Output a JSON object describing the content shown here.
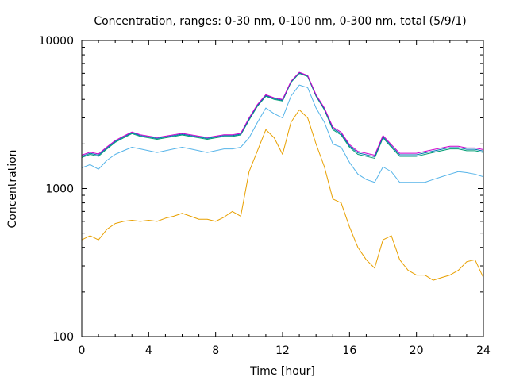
{
  "chart_data": {
    "type": "line",
    "title": "Concentration, ranges: 0-30 nm, 0-100 nm, 0-300 nm, total (5/9/1)",
    "xlabel": "Time [hour]",
    "ylabel": "Concentration",
    "xlim": [
      0,
      24
    ],
    "ylim": [
      100,
      10000
    ],
    "y_scale": "log",
    "grid": false,
    "x_ticks": [
      0,
      4,
      8,
      12,
      16,
      20,
      24
    ],
    "x_tick_labels": [
      "0",
      "4",
      "8",
      "12",
      "16",
      "20",
      "24"
    ],
    "y_ticks": [
      100,
      1000,
      10000
    ],
    "y_tick_labels": [
      "100",
      "1000",
      "10000"
    ],
    "series": [
      {
        "color": "#e8a000",
        "x": [
          0,
          0.5,
          1,
          1.5,
          2,
          2.5,
          3,
          3.5,
          4,
          4.5,
          5,
          5.5,
          6,
          6.5,
          7,
          7.5,
          8,
          8.5,
          9,
          9.5,
          10,
          10.5,
          11,
          11.5,
          12,
          12.5,
          13,
          13.5,
          14,
          14.5,
          15,
          15.5,
          16,
          16.5,
          17,
          17.5,
          18,
          18.5,
          19,
          19.5,
          20,
          20.5,
          21,
          21.5,
          22,
          22.5,
          23,
          23.5,
          24
        ],
        "values": [
          450,
          480,
          450,
          530,
          580,
          600,
          610,
          600,
          610,
          600,
          630,
          650,
          680,
          650,
          620,
          620,
          600,
          640,
          700,
          650,
          1300,
          1800,
          2500,
          2200,
          1700,
          2800,
          3400,
          3000,
          2000,
          1400,
          850,
          800,
          550,
          400,
          330,
          290,
          450,
          480,
          330,
          280,
          260,
          260,
          240,
          250,
          260,
          280,
          320,
          330,
          250
        ]
      },
      {
        "color": "#56b4e9",
        "x": [
          0,
          0.5,
          1,
          1.5,
          2,
          2.5,
          3,
          3.5,
          4,
          4.5,
          5,
          5.5,
          6,
          6.5,
          7,
          7.5,
          8,
          8.5,
          9,
          9.5,
          10,
          10.5,
          11,
          11.5,
          12,
          12.5,
          13,
          13.5,
          14,
          14.5,
          15,
          15.5,
          16,
          16.5,
          17,
          17.5,
          18,
          18.5,
          19,
          19.5,
          20,
          20.5,
          21,
          21.5,
          22,
          22.5,
          23,
          23.5,
          24
        ],
        "values": [
          1380,
          1450,
          1350,
          1550,
          1700,
          1800,
          1900,
          1850,
          1800,
          1750,
          1800,
          1850,
          1900,
          1850,
          1800,
          1750,
          1800,
          1850,
          1850,
          1900,
          2200,
          2800,
          3500,
          3200,
          3000,
          4200,
          5000,
          4800,
          3500,
          2800,
          2000,
          1900,
          1500,
          1250,
          1150,
          1100,
          1400,
          1300,
          1100,
          1100,
          1100,
          1100,
          1150,
          1200,
          1250,
          1300,
          1280,
          1250,
          1200
        ]
      },
      {
        "color": "#009e73",
        "x": [
          0,
          0.5,
          1,
          1.5,
          2,
          2.5,
          3,
          3.5,
          4,
          4.5,
          5,
          5.5,
          6,
          6.5,
          7,
          7.5,
          8,
          8.5,
          9,
          9.5,
          10,
          10.5,
          11,
          11.5,
          12,
          12.5,
          13,
          13.5,
          14,
          14.5,
          15,
          15.5,
          16,
          16.5,
          17,
          17.5,
          18,
          18.5,
          19,
          19.5,
          20,
          20.5,
          21,
          21.5,
          22,
          22.5,
          23,
          23.5,
          24
        ],
        "values": [
          1620,
          1700,
          1650,
          1850,
          2050,
          2200,
          2350,
          2250,
          2200,
          2150,
          2200,
          2250,
          2300,
          2250,
          2200,
          2150,
          2200,
          2250,
          2250,
          2300,
          2900,
          3600,
          4200,
          4000,
          3900,
          5200,
          6000,
          5700,
          4200,
          3400,
          2500,
          2300,
          1900,
          1700,
          1650,
          1600,
          2200,
          1900,
          1650,
          1650,
          1650,
          1700,
          1750,
          1800,
          1850,
          1850,
          1800,
          1800,
          1750
        ]
      },
      {
        "color": "#0072b2",
        "x": [
          0,
          0.5,
          1,
          1.5,
          2,
          2.5,
          3,
          3.5,
          4,
          4.5,
          5,
          5.5,
          6,
          6.5,
          7,
          7.5,
          8,
          8.5,
          9,
          9.5,
          10,
          10.5,
          11,
          11.5,
          12,
          12.5,
          13,
          13.5,
          14,
          14.5,
          15,
          15.5,
          16,
          16.5,
          17,
          17.5,
          18,
          18.5,
          19,
          19.5,
          20,
          20.5,
          21,
          21.5,
          22,
          22.5,
          23,
          23.5,
          24
        ],
        "values": [
          1650,
          1730,
          1680,
          1880,
          2080,
          2230,
          2380,
          2280,
          2230,
          2180,
          2230,
          2280,
          2330,
          2280,
          2230,
          2180,
          2230,
          2280,
          2280,
          2330,
          2950,
          3650,
          4250,
          4050,
          3950,
          5250,
          6050,
          5750,
          4250,
          3450,
          2550,
          2350,
          1940,
          1740,
          1690,
          1640,
          2240,
          1940,
          1690,
          1690,
          1690,
          1740,
          1790,
          1840,
          1890,
          1890,
          1840,
          1840,
          1790
        ]
      },
      {
        "color": "#cc00cc",
        "x": [
          0,
          0.5,
          1,
          1.5,
          2,
          2.5,
          3,
          3.5,
          4,
          4.5,
          5,
          5.5,
          6,
          6.5,
          7,
          7.5,
          8,
          8.5,
          9,
          9.5,
          10,
          10.5,
          11,
          11.5,
          12,
          12.5,
          13,
          13.5,
          14,
          14.5,
          15,
          15.5,
          16,
          16.5,
          17,
          17.5,
          18,
          18.5,
          19,
          19.5,
          20,
          20.5,
          21,
          21.5,
          22,
          22.5,
          23,
          23.5,
          24
        ],
        "values": [
          1680,
          1760,
          1710,
          1910,
          2110,
          2260,
          2410,
          2310,
          2260,
          2210,
          2260,
          2310,
          2360,
          2310,
          2260,
          2210,
          2260,
          2310,
          2310,
          2360,
          3000,
          3700,
          4300,
          4100,
          4000,
          5300,
          6100,
          5800,
          4300,
          3500,
          2600,
          2400,
          1980,
          1780,
          1730,
          1680,
          2280,
          1980,
          1730,
          1730,
          1730,
          1780,
          1830,
          1880,
          1930,
          1930,
          1880,
          1880,
          1830
        ]
      }
    ]
  }
}
